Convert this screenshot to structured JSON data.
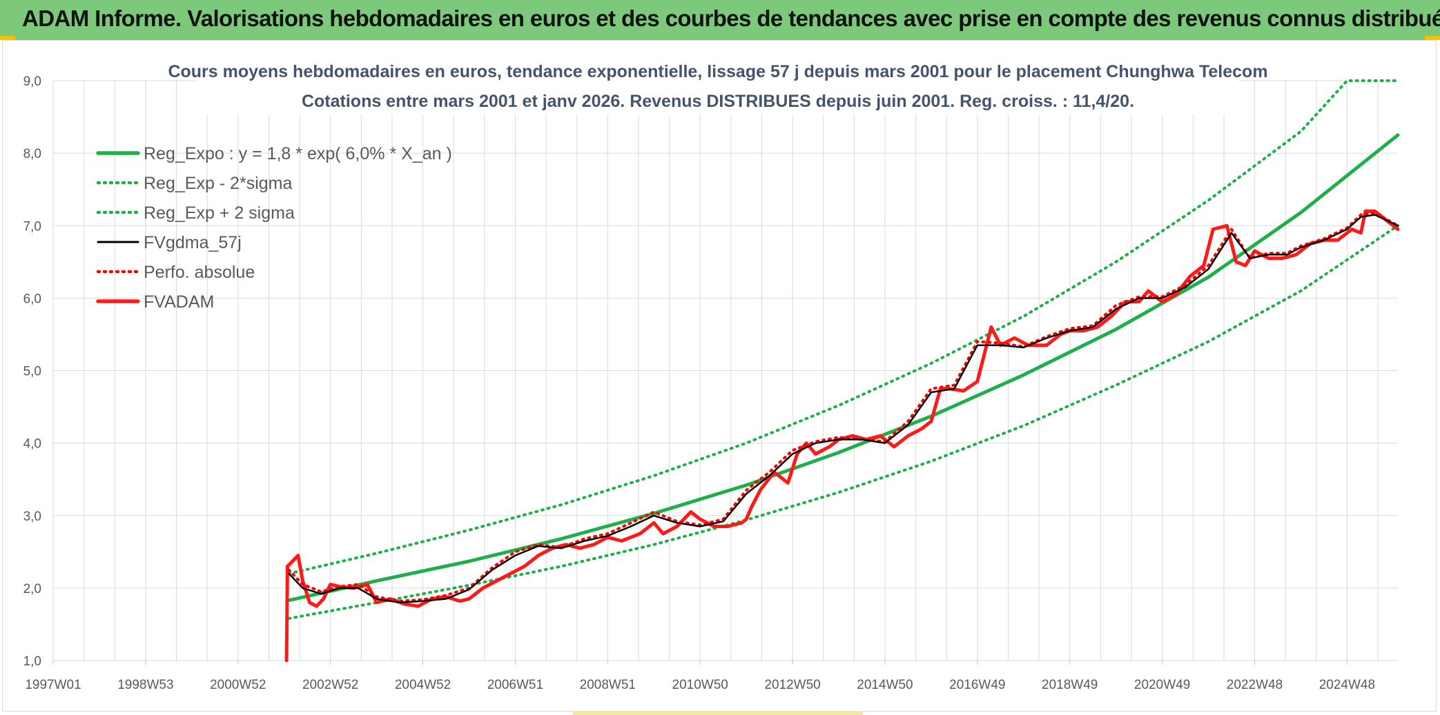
{
  "header": {
    "title": "ADAM Informe. Valorisations hebdomadaires en euros et des courbes de tendances avec prise en compte des revenus connus distribués"
  },
  "colors": {
    "header_bg": "#7cc97c",
    "trend": "#1db04a",
    "band": "#1db04a",
    "smooth": "#000000",
    "perf": "#ff0000",
    "adam": "#ff1a1a",
    "grid": "#d9d9d9",
    "accent_corner": "#f2c400"
  },
  "chart_data": {
    "type": "line",
    "title": "Cours moyens hebdomadaires en euros, tendance exponentielle, lissage 57 j depuis mars 2001 pour le placement Chunghwa Telecom",
    "subtitle": "Cotations entre mars 2001 et janv 2026. Revenus DISTRIBUES depuis juin 2001. Reg. croiss. : 11,4/20.",
    "xlabel": "",
    "ylabel": "",
    "x_range": [
      1997.0,
      2026.1
    ],
    "ylim": [
      1.0,
      9.0
    ],
    "y_ticks": [
      "1,0",
      "2,0",
      "3,0",
      "4,0",
      "5,0",
      "6,0",
      "7,0",
      "8,0",
      "9,0"
    ],
    "x_tick_positions": [
      1997,
      1999,
      2001,
      2003,
      2005,
      2007,
      2009,
      2011,
      2013,
      2015,
      2017,
      2019,
      2021,
      2023,
      2025
    ],
    "x_tick_labels": [
      "1997W01",
      "1998W53",
      "2000W52",
      "2002W52",
      "2004W52",
      "2006W51",
      "2008W51",
      "2010W50",
      "2012W50",
      "2014W50",
      "2016W49",
      "2018W49",
      "2020W49",
      "2022W48",
      "2024W48"
    ],
    "legend_position": "top-left",
    "series": [
      {
        "name": "Reg_Expo : y = 1,8 * exp( 6,0% *  X_an )",
        "style": "solid-thick",
        "color": "#1db04a",
        "x": [
          2002.1,
          2004,
          2006,
          2008,
          2010,
          2012,
          2014,
          2016,
          2018,
          2020,
          2022,
          2024,
          2026.1
        ],
        "values": [
          1.83,
          2.1,
          2.37,
          2.68,
          3.03,
          3.42,
          3.87,
          4.37,
          4.94,
          5.57,
          6.29,
          7.18,
          8.25
        ]
      },
      {
        "name": "Reg_Exp - 2*sigma",
        "style": "dotted",
        "color": "#1db04a",
        "x": [
          2002.1,
          2004,
          2006,
          2008,
          2010,
          2012,
          2014,
          2016,
          2018,
          2020,
          2022,
          2024,
          2026.1
        ],
        "values": [
          1.58,
          1.8,
          2.04,
          2.3,
          2.6,
          2.94,
          3.32,
          3.75,
          4.24,
          4.8,
          5.4,
          6.1,
          7.0
        ]
      },
      {
        "name": "Reg_Exp + 2 sigma",
        "style": "dotted",
        "color": "#1db04a",
        "x": [
          2002.1,
          2004,
          2006,
          2008,
          2010,
          2012,
          2014,
          2016,
          2018,
          2020,
          2022,
          2024,
          2025.0,
          2026.1
        ],
        "values": [
          2.2,
          2.48,
          2.8,
          3.15,
          3.55,
          4.0,
          4.52,
          5.1,
          5.75,
          6.5,
          7.35,
          8.3,
          9.0,
          9.0
        ]
      },
      {
        "name": "FVgdma_57j",
        "style": "solid",
        "color": "#000000",
        "x": [
          2002.1,
          2002.4,
          2002.8,
          2003.2,
          2003.6,
          2004.0,
          2004.5,
          2005.0,
          2005.5,
          2006.0,
          2006.5,
          2007.0,
          2007.5,
          2008.0,
          2008.5,
          2009.0,
          2009.5,
          2010.0,
          2010.5,
          2011.0,
          2011.5,
          2012.0,
          2012.5,
          2013.0,
          2013.5,
          2014.0,
          2014.5,
          2015.0,
          2015.5,
          2016.0,
          2016.5,
          2017.0,
          2017.5,
          2018.0,
          2018.5,
          2019.0,
          2019.5,
          2020.0,
          2020.5,
          2021.0,
          2021.5,
          2022.0,
          2022.5,
          2022.9,
          2023.3,
          2023.7,
          2024.0,
          2024.5,
          2025.0,
          2025.3,
          2025.6,
          2026.1
        ],
        "values": [
          2.2,
          2.0,
          1.92,
          2.0,
          2.0,
          1.85,
          1.8,
          1.82,
          1.85,
          1.98,
          2.25,
          2.45,
          2.58,
          2.55,
          2.65,
          2.72,
          2.85,
          3.0,
          2.9,
          2.85,
          2.92,
          3.3,
          3.55,
          3.85,
          4.0,
          4.05,
          4.05,
          4.0,
          4.25,
          4.7,
          4.75,
          5.35,
          5.35,
          5.32,
          5.45,
          5.55,
          5.6,
          5.85,
          6.0,
          6.0,
          6.15,
          6.4,
          6.9,
          6.55,
          6.6,
          6.6,
          6.7,
          6.8,
          6.95,
          7.12,
          7.15,
          7.0
        ]
      },
      {
        "name": "Perfo. absolue",
        "style": "dotted",
        "color": "#ff0000",
        "x": [
          2002.1,
          2002.4,
          2002.8,
          2003.2,
          2003.6,
          2004.0,
          2004.5,
          2005.0,
          2005.5,
          2006.0,
          2006.5,
          2007.0,
          2007.5,
          2008.0,
          2008.5,
          2009.0,
          2009.5,
          2010.0,
          2010.5,
          2011.0,
          2011.5,
          2012.0,
          2012.5,
          2013.0,
          2013.5,
          2014.0,
          2014.5,
          2015.0,
          2015.5,
          2016.0,
          2016.5,
          2017.0,
          2017.5,
          2018.0,
          2018.5,
          2019.0,
          2019.5,
          2020.0,
          2020.5,
          2021.0,
          2021.5,
          2022.0,
          2022.5,
          2022.9,
          2023.3,
          2023.7,
          2024.0,
          2024.5,
          2025.0,
          2025.3,
          2025.6,
          2026.1
        ],
        "values": [
          2.25,
          2.05,
          1.95,
          2.02,
          2.05,
          1.88,
          1.82,
          1.84,
          1.9,
          2.0,
          2.28,
          2.5,
          2.6,
          2.56,
          2.68,
          2.75,
          2.9,
          3.05,
          2.92,
          2.87,
          2.95,
          3.35,
          3.6,
          3.9,
          4.02,
          4.08,
          4.05,
          4.02,
          4.3,
          4.75,
          4.8,
          5.4,
          5.38,
          5.33,
          5.47,
          5.58,
          5.62,
          5.9,
          6.02,
          6.02,
          6.18,
          6.45,
          6.95,
          6.55,
          6.62,
          6.62,
          6.72,
          6.82,
          6.97,
          7.15,
          7.18,
          7.0
        ]
      },
      {
        "name": "FVADAM",
        "style": "solid-thick",
        "color": "#ff1a1a",
        "x": [
          2002.05,
          2002.07,
          2002.15,
          2002.3,
          2002.4,
          2002.55,
          2002.7,
          2002.85,
          2003.0,
          2003.2,
          2003.5,
          2003.8,
          2004.0,
          2004.3,
          2004.6,
          2004.9,
          2005.2,
          2005.5,
          2005.8,
          2006.0,
          2006.3,
          2006.6,
          2006.9,
          2007.2,
          2007.5,
          2007.8,
          2008.1,
          2008.4,
          2008.7,
          2009.0,
          2009.3,
          2009.5,
          2009.7,
          2010.0,
          2010.2,
          2010.5,
          2010.8,
          2011.0,
          2011.3,
          2011.6,
          2011.9,
          2012.0,
          2012.1,
          2012.3,
          2012.6,
          2012.9,
          2013.1,
          2013.3,
          2013.5,
          2013.8,
          2014.0,
          2014.3,
          2014.6,
          2014.9,
          2015.2,
          2015.5,
          2015.8,
          2016.0,
          2016.2,
          2016.4,
          2016.7,
          2017.0,
          2017.3,
          2017.5,
          2017.8,
          2018.1,
          2018.5,
          2018.8,
          2019.0,
          2019.3,
          2019.6,
          2019.9,
          2020.2,
          2020.5,
          2020.7,
          2021.0,
          2021.3,
          2021.6,
          2021.9,
          2022.1,
          2022.4,
          2022.6,
          2022.8,
          2023.0,
          2023.3,
          2023.6,
          2023.9,
          2024.2,
          2024.5,
          2024.8,
          2025.1,
          2025.3,
          2025.4,
          2025.6,
          2025.8,
          2026.1
        ],
        "values": [
          1.0,
          2.3,
          2.35,
          2.45,
          2.1,
          1.8,
          1.75,
          1.85,
          2.05,
          2.02,
          2.0,
          2.05,
          1.8,
          1.85,
          1.78,
          1.75,
          1.85,
          1.88,
          1.82,
          1.85,
          2.0,
          2.1,
          2.2,
          2.3,
          2.45,
          2.55,
          2.6,
          2.55,
          2.6,
          2.7,
          2.65,
          2.7,
          2.75,
          2.9,
          2.75,
          2.85,
          3.05,
          2.95,
          2.85,
          2.85,
          2.9,
          2.95,
          3.1,
          3.35,
          3.6,
          3.45,
          3.85,
          4.0,
          3.85,
          3.95,
          4.05,
          4.1,
          4.05,
          4.1,
          3.95,
          4.1,
          4.2,
          4.3,
          4.75,
          4.75,
          4.72,
          4.85,
          5.6,
          5.35,
          5.45,
          5.35,
          5.35,
          5.5,
          5.55,
          5.55,
          5.6,
          5.75,
          5.95,
          5.95,
          6.1,
          5.95,
          6.05,
          6.3,
          6.45,
          6.95,
          7.0,
          6.5,
          6.45,
          6.65,
          6.55,
          6.55,
          6.6,
          6.75,
          6.8,
          6.8,
          6.95,
          6.9,
          7.2,
          7.2,
          7.1,
          6.95
        ]
      }
    ]
  }
}
